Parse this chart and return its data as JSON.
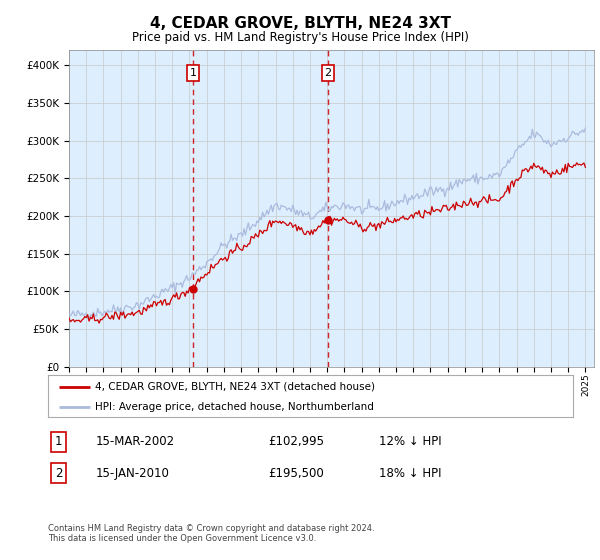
{
  "title": "4, CEDAR GROVE, BLYTH, NE24 3XT",
  "subtitle": "Price paid vs. HM Land Registry's House Price Index (HPI)",
  "legend_line1": "4, CEDAR GROVE, BLYTH, NE24 3XT (detached house)",
  "legend_line2": "HPI: Average price, detached house, Northumberland",
  "annotation1_label": "1",
  "annotation1_date": "15-MAR-2002",
  "annotation1_price": "£102,995",
  "annotation1_hpi": "12% ↓ HPI",
  "annotation2_label": "2",
  "annotation2_date": "15-JAN-2010",
  "annotation2_price": "£195,500",
  "annotation2_hpi": "18% ↓ HPI",
  "footer": "Contains HM Land Registry data © Crown copyright and database right 2024.\nThis data is licensed under the Open Government Licence v3.0.",
  "hpi_color": "#aabbdd",
  "price_color": "#cc0000",
  "vline_color": "#cc0000",
  "background_color": "#ddeeff",
  "ylim": [
    0,
    420000
  ],
  "yticks": [
    0,
    50000,
    100000,
    150000,
    200000,
    250000,
    300000,
    350000,
    400000
  ],
  "sale1_year": 2002.21,
  "sale1_price": 102995,
  "sale2_year": 2010.04,
  "sale2_price": 195500
}
